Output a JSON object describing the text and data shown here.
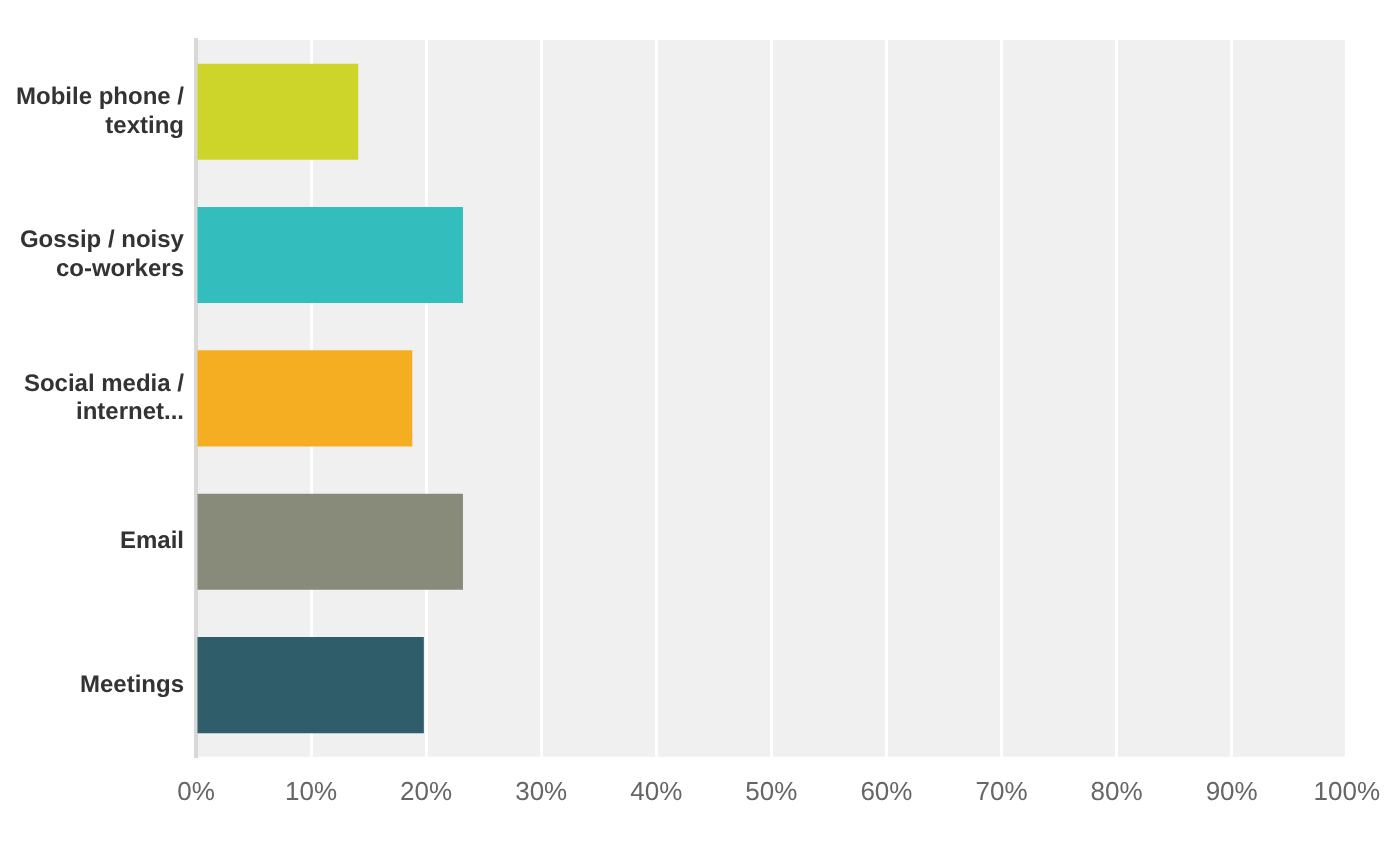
{
  "chart_data": {
    "type": "bar",
    "orientation": "horizontal",
    "categories": [
      "Mobile phone / texting",
      "Gossip / noisy co-workers",
      "Social media / internet...",
      "Email",
      "Meetings"
    ],
    "values": [
      14.1,
      23.2,
      18.8,
      23.2,
      19.8
    ],
    "colors": [
      "#cdd42a",
      "#33bdbd",
      "#f5ae22",
      "#888a7a",
      "#2f5e6a"
    ],
    "xlim": [
      0,
      100
    ],
    "xticks": [
      {
        "value": 0,
        "label": "0%"
      },
      {
        "value": 10,
        "label": "10%"
      },
      {
        "value": 20,
        "label": "20%"
      },
      {
        "value": 30,
        "label": "30%"
      },
      {
        "value": 40,
        "label": "40%"
      },
      {
        "value": 50,
        "label": "50%"
      },
      {
        "value": 60,
        "label": "60%"
      },
      {
        "value": 70,
        "label": "70%"
      },
      {
        "value": 80,
        "label": "80%"
      },
      {
        "value": 90,
        "label": "90%"
      },
      {
        "value": 100,
        "label": "100%"
      }
    ],
    "grid": "x",
    "legend": false
  }
}
